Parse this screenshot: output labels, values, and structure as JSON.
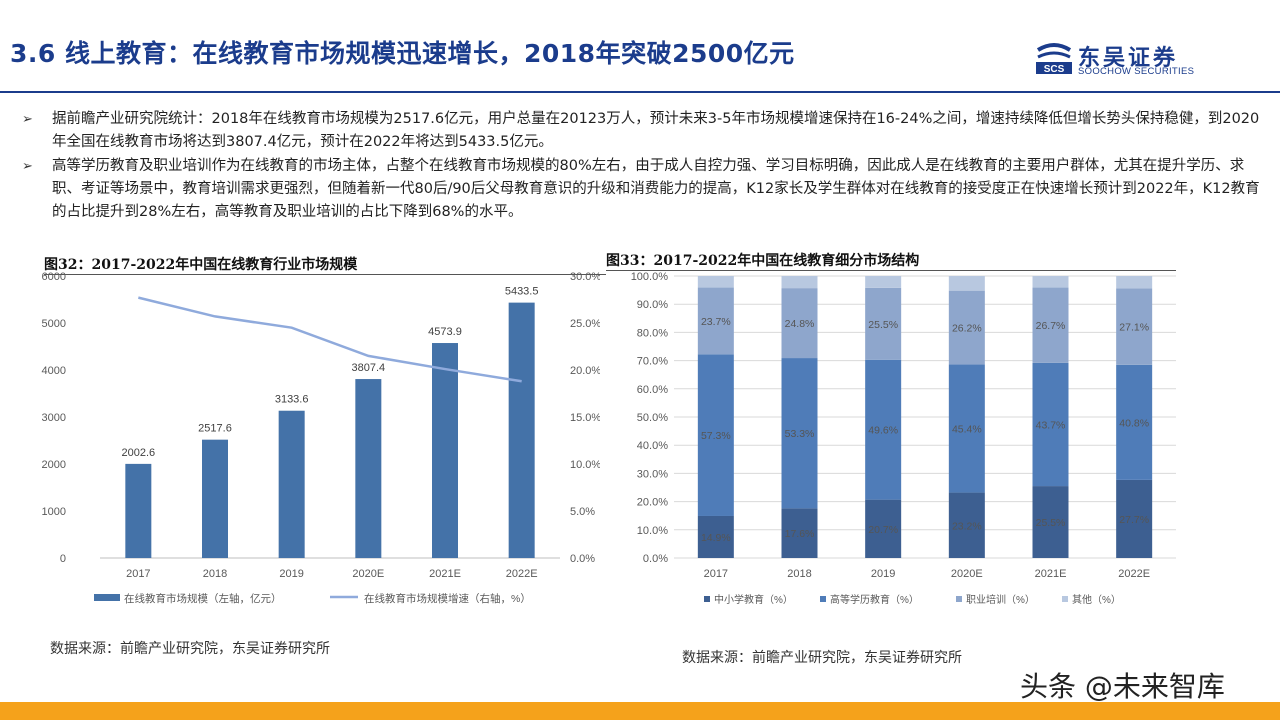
{
  "header": {
    "title": "3.6 线上教育：在线教育市场规模迅速增长，2018年突破2500亿元",
    "logo": {
      "cn": "东吴证券",
      "en": "SOOCHOW SECURITIES",
      "badge": "SCS"
    }
  },
  "bullets": [
    {
      "icon": "arrow-bullet-icon",
      "text": "据前瞻产业研究院统计：2018年在线教育市场规模为2517.6亿元，用户总量在20123万人，预计未来3-5年市场规模增速保持在16-24%之间，增速持续降低但增长势头保持稳健，到2020年全国在线教育市场将达到3807.4亿元，预计在2022年将达到5433.5亿元。"
    },
    {
      "icon": "arrow-bullet-icon",
      "text": "高等学历教育及职业培训作为在线教育的市场主体，占整个在线教育市场规模的80%左右，由于成人自控力强、学习目标明确，因此成人是在线教育的主要用户群体，尤其在提升学历、求职、考证等场景中，教育培训需求更强烈，但随着新一代80后/90后父母教育意识的升级和消费能力的提高，K12家长及学生群体对在线教育的接受度正在快速增长预计到2022年，K12教育的占比提升到28%左右，高等教育及职业培训的占比下降到68%的水平。"
    }
  ],
  "figure32": {
    "title": "图32：2017-2022年中国在线教育行业市场规模",
    "source": "数据来源：前瞻产业研究院，东吴证券研究所"
  },
  "figure33": {
    "title": "图33：2017-2022年中国在线教育细分市场结构",
    "source": "数据来源：前瞻产业研究院，东吴证券研究所"
  },
  "watermark": "头条 @未来智库",
  "colors": {
    "brand": "#1b3c8c",
    "bar": "#4472a8",
    "line": "#8faadc",
    "accent_bar": "#f5a21b"
  },
  "chart_data": [
    {
      "type": "bar",
      "categories": [
        "2017",
        "2018",
        "2019",
        "2020E",
        "2021E",
        "2022E"
      ],
      "series": [
        {
          "name": "在线教育市场规模（左轴，亿元）",
          "type": "bar",
          "axis": "left",
          "values": [
            2002.6,
            2517.6,
            3133.6,
            3807.4,
            4573.9,
            5433.5
          ],
          "labels": [
            "2002.6",
            "2517.6",
            "3133.6",
            "3807.4",
            "4573.9",
            "5433.5"
          ]
        },
        {
          "name": "在线教育市场规模增速（右轴，%）",
          "type": "line",
          "axis": "right",
          "values": [
            27.7,
            25.7,
            24.5,
            21.5,
            20.1,
            18.8
          ]
        }
      ],
      "ylim": [
        0,
        6000
      ],
      "yticks": [
        "0",
        "1000",
        "2000",
        "3000",
        "4000",
        "5000",
        "6000"
      ],
      "y2lim": [
        0,
        30
      ],
      "y2ticks": [
        "0.0%",
        "5.0%",
        "10.0%",
        "15.0%",
        "20.0%",
        "25.0%",
        "30.0%"
      ],
      "legend": "bottom",
      "grid": false
    },
    {
      "type": "bar",
      "stacked": true,
      "categories": [
        "2017",
        "2018",
        "2019",
        "2020E",
        "2021E",
        "2022E"
      ],
      "series": [
        {
          "name": "中小学教育（%）",
          "values": [
            14.9,
            17.6,
            20.7,
            23.2,
            25.5,
            27.7
          ],
          "labels": [
            "14.9%",
            "17.6%",
            "20.7%",
            "23.2%",
            "25.5%",
            "27.7%"
          ]
        },
        {
          "name": "高等学历教育（%）",
          "values": [
            57.3,
            53.3,
            49.6,
            45.4,
            43.7,
            40.8
          ],
          "labels": [
            "57.3%",
            "53.3%",
            "49.6%",
            "45.4%",
            "43.7%",
            "40.8%"
          ]
        },
        {
          "name": "职业培训（%）",
          "values": [
            23.7,
            24.8,
            25.5,
            26.2,
            26.7,
            27.1
          ],
          "labels": [
            "23.7%",
            "24.8%",
            "25.5%",
            "26.2%",
            "26.7%",
            "27.1%"
          ]
        },
        {
          "name": "其他（%）",
          "values": [
            4.1,
            4.3,
            4.2,
            5.2,
            4.1,
            4.4
          ]
        }
      ],
      "ylim": [
        0,
        100
      ],
      "yticks": [
        "0.0%",
        "10.0%",
        "20.0%",
        "30.0%",
        "40.0%",
        "50.0%",
        "60.0%",
        "70.0%",
        "80.0%",
        "90.0%",
        "100.0%"
      ],
      "legend": "bottom",
      "grid": true
    }
  ]
}
